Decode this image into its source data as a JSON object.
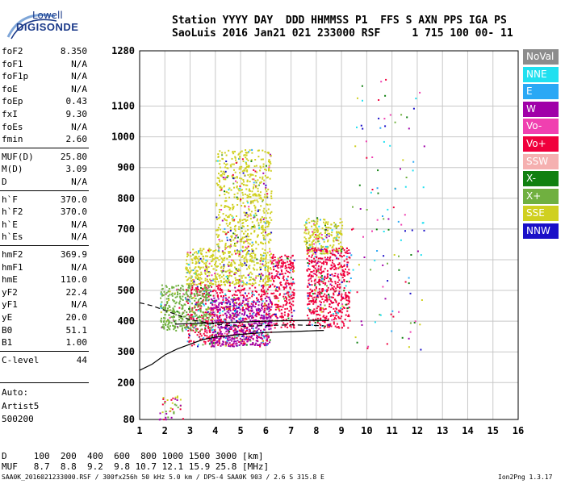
{
  "logo": {
    "line1": "Lowell",
    "line2": "DIGISONDE"
  },
  "header": {
    "line1": "Station YYYY DAY  DDD HHMMSS P1  FFS S AXN PPS IGA PS",
    "line2": "SaoLuis 2016 Jan21 021 233000 RSF     1 715 100 00- 11"
  },
  "params": [
    {
      "name": "foF2",
      "value": "8.350"
    },
    {
      "name": "foF1",
      "value": "N/A"
    },
    {
      "name": "foF1p",
      "value": "N/A"
    },
    {
      "name": "foE",
      "value": "N/A"
    },
    {
      "name": "foEp",
      "value": "0.43"
    },
    {
      "name": "fxI",
      "value": "9.30"
    },
    {
      "name": "foEs",
      "value": "N/A"
    },
    {
      "name": "fmin",
      "value": "2.60"
    },
    {
      "name": "MUF(D)",
      "value": "25.80"
    },
    {
      "name": "M(D)",
      "value": "3.09"
    },
    {
      "name": "D",
      "value": "N/A"
    },
    {
      "name": "h`F",
      "value": "370.0"
    },
    {
      "name": "h`F2",
      "value": "370.0"
    },
    {
      "name": "h`E",
      "value": "N/A"
    },
    {
      "name": "h`Es",
      "value": "N/A"
    },
    {
      "name": "hmF2",
      "value": "369.9"
    },
    {
      "name": "hmF1",
      "value": "N/A"
    },
    {
      "name": "hmE",
      "value": "110.0"
    },
    {
      "name": "yF2",
      "value": "22.4"
    },
    {
      "name": "yF1",
      "value": "N/A"
    },
    {
      "name": "yE",
      "value": "20.0"
    },
    {
      "name": "B0",
      "value": "51.1"
    },
    {
      "name": "B1",
      "value": "1.00"
    },
    {
      "name": "C-level",
      "value": "44"
    }
  ],
  "auto": {
    "line1": "Auto:",
    "line2": "Artist5",
    "line3": "500200"
  },
  "legend": [
    {
      "label": "NoVal",
      "color": "#8c8c8c"
    },
    {
      "label": "NNE",
      "color": "#20e0f0"
    },
    {
      "label": "E",
      "color": "#2aa8f5"
    },
    {
      "label": "W",
      "color": "#a000a8"
    },
    {
      "label": "Vo-",
      "color": "#f040b0"
    },
    {
      "label": "Vo+",
      "color": "#f0003c"
    },
    {
      "label": "SSW",
      "color": "#f5b0b0"
    },
    {
      "label": "X-",
      "color": "#108010"
    },
    {
      "label": "X+",
      "color": "#70b040"
    },
    {
      "label": "SSE",
      "color": "#d0d020"
    },
    {
      "label": "NNW",
      "color": "#1a10c8"
    }
  ],
  "footer": {
    "d_line": "D     100  200  400  600  800 1000 1500 3000 [km]",
    "muf_line": "MUF   8.7  8.8  9.2  9.8 10.7 12.1 15.9 25.8 [MHz]",
    "file_line": "SAA0K_2016021233000.RSF / 300fx256h 50 kHz 5.0 km / DPS-4 SAA0K 903 / 2.6 S 315.8 E",
    "version": "Ion2Png 1.3.17"
  },
  "chart_data": {
    "type": "scatter",
    "xlim": [
      1,
      16
    ],
    "ylim": [
      80,
      1280
    ],
    "xticks": [
      "1",
      "2",
      "3",
      "4",
      "5",
      "6",
      "7",
      "8",
      "9",
      "10",
      "11",
      "12",
      "13",
      "14",
      "15",
      "16"
    ],
    "yticks": [
      "80",
      "200",
      "300",
      "400",
      "500",
      "600",
      "700",
      "800",
      "900",
      "1000",
      "1100",
      "1280"
    ],
    "grid": true,
    "echo_regions": [
      {
        "color": "SSE",
        "x": [
          2.8,
          6.2
        ],
        "y": [
          520,
          640
        ]
      },
      {
        "color": "SSE",
        "x": [
          4.0,
          6.2
        ],
        "y": [
          640,
          960
        ]
      },
      {
        "color": "SSE",
        "x": [
          7.5,
          9.0
        ],
        "y": [
          620,
          740
        ]
      },
      {
        "color": "Vo+",
        "x": [
          2.8,
          6.2
        ],
        "y": [
          320,
          520
        ]
      },
      {
        "color": "Vo+",
        "x": [
          6.2,
          7.1
        ],
        "y": [
          380,
          620
        ]
      },
      {
        "color": "Vo+",
        "x": [
          7.6,
          9.3
        ],
        "y": [
          380,
          640
        ]
      },
      {
        "color": "W",
        "x": [
          3.8,
          6.2
        ],
        "y": [
          320,
          480
        ]
      },
      {
        "color": "X+",
        "x": [
          1.8,
          3.8
        ],
        "y": [
          370,
          520
        ]
      }
    ],
    "trace_curve": {
      "x": [
        1.0,
        1.5,
        2.0,
        2.5,
        3.0,
        3.5,
        4.0,
        4.5,
        5.0,
        6.0,
        7.0,
        8.0,
        8.3
      ],
      "y": [
        240,
        260,
        290,
        310,
        325,
        340,
        348,
        352,
        357,
        363,
        366,
        369,
        370
      ]
    },
    "dashed_curve": {
      "x": [
        1.0,
        1.5,
        2.0,
        2.5,
        3.0,
        4.0,
        5.0,
        6.0,
        7.0,
        8.0,
        8.3
      ],
      "y": [
        460,
        450,
        435,
        420,
        405,
        390,
        383,
        386,
        388,
        386,
        385
      ]
    },
    "solid_curve2": {
      "x": [
        2.4,
        3.0,
        4.0,
        5.0,
        6.0,
        7.0,
        8.0,
        8.5
      ],
      "y": [
        390,
        392,
        394,
        397,
        400,
        402,
        403,
        402
      ]
    }
  }
}
